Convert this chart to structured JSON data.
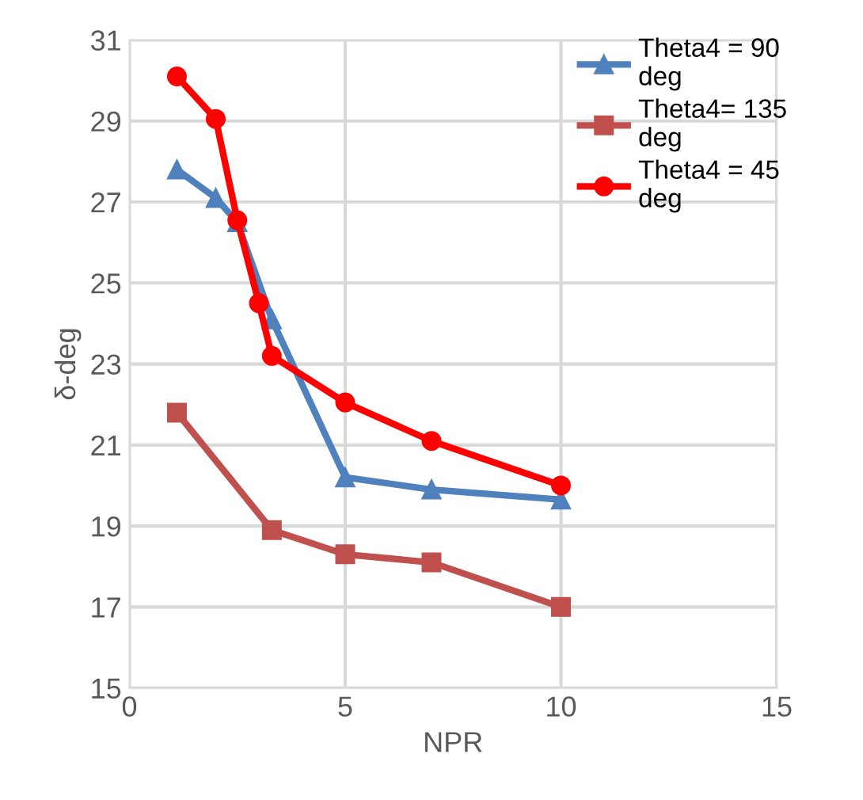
{
  "chart_data": {
    "type": "line",
    "xlabel": "NPR",
    "ylabel": "δ-deg",
    "xlim": [
      0,
      15
    ],
    "xticks": [
      0,
      5,
      10,
      15
    ],
    "ylim": [
      15,
      31
    ],
    "yticks": [
      15,
      17,
      19,
      21,
      23,
      25,
      27,
      29,
      31
    ],
    "grid": true,
    "legend": "top right",
    "line_style": "solid",
    "series": [
      {
        "name": "Theta4 = 90 deg",
        "color": "#4f81bd",
        "marker": "triangle",
        "x": [
          1.1,
          2,
          2.5,
          3.3,
          5,
          7,
          10
        ],
        "values": [
          27.8,
          27.1,
          26.5,
          24.1,
          20.2,
          19.9,
          19.65
        ]
      },
      {
        "name": "Theta4= 135 deg",
        "color": "#c0504d",
        "marker": "square",
        "x": [
          1.1,
          3.3,
          5,
          7,
          10
        ],
        "values": [
          21.8,
          18.9,
          18.3,
          18.1,
          17.0
        ]
      },
      {
        "name": "Theta4 = 45 deg",
        "color": "#ff0000",
        "marker": "circle",
        "x": [
          1.1,
          2,
          2.5,
          3,
          3.3,
          5,
          7,
          10
        ],
        "values": [
          30.1,
          29.05,
          26.55,
          24.5,
          23.2,
          22.05,
          21.1,
          20.0
        ]
      }
    ]
  }
}
